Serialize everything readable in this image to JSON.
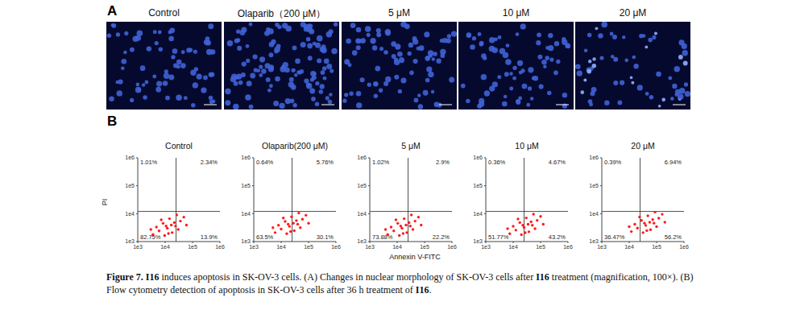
{
  "panel_a": {
    "label": "A",
    "titles": [
      "Control",
      "Olaparib（200 μM）",
      "5 μM",
      "10 μM",
      "20 μM"
    ]
  },
  "panel_b_label": "B",
  "shared_axes": {
    "x_label": "Annexin V-FITC",
    "y_label": "PI"
  },
  "chart_data": [
    {
      "type": "scatter",
      "title": "Control",
      "log": true,
      "color": "#ff1a1a",
      "xlim": [
        1000,
        1000000
      ],
      "ylim": [
        1000,
        1000000
      ],
      "xticks": [
        {
          "value": 1000,
          "label": "1e3"
        },
        {
          "value": 10000,
          "label": "1e4"
        },
        {
          "value": 100000,
          "label": "1e5"
        },
        {
          "value": 1000000,
          "label": "1e6"
        }
      ],
      "yticks": [
        {
          "value": 1000,
          "label": "1e3"
        },
        {
          "value": 10000,
          "label": "1e4"
        },
        {
          "value": 100000,
          "label": "1e5"
        },
        {
          "value": 1000000,
          "label": "1e6"
        }
      ],
      "gates": {
        "x": 25000,
        "y": 12000
      },
      "quadrants": [
        {
          "position": "upper_left",
          "value": 1.01,
          "label": "1.01%"
        },
        {
          "position": "upper_right",
          "value": 2.34,
          "label": "2.34%"
        },
        {
          "position": "lower_left",
          "value": 82.75,
          "label": "82.75%"
        },
        {
          "position": "lower_right",
          "value": 13.9,
          "label": "13.9%"
        }
      ],
      "x": [
        12000,
        6000,
        24000,
        8400,
        18000,
        3600,
        36000,
        14400,
        9600,
        30000,
        4800,
        21600,
        48000,
        7200,
        13200,
        60000,
        3000,
        26400,
        16800,
        10800
      ],
      "y": [
        3000,
        2400,
        3600,
        4500,
        2100,
        1800,
        5400,
        6600,
        1650,
        2700,
        3300,
        4800,
        7500,
        6000,
        1950,
        3900,
        2700,
        9000,
        3900,
        3600
      ]
    },
    {
      "type": "scatter",
      "title": "Olaparib(200 μM)",
      "log": true,
      "color": "#ff1a1a",
      "xlim": [
        1000,
        1000000
      ],
      "ylim": [
        1000,
        1000000
      ],
      "xticks": [
        {
          "value": 1000,
          "label": "1e3"
        },
        {
          "value": 10000,
          "label": "1e4"
        },
        {
          "value": 100000,
          "label": "1e5"
        },
        {
          "value": 1000000,
          "label": "1e6"
        }
      ],
      "yticks": [
        {
          "value": 1000,
          "label": "1e3"
        },
        {
          "value": 10000,
          "label": "1e4"
        },
        {
          "value": 100000,
          "label": "1e5"
        },
        {
          "value": 1000000,
          "label": "1e6"
        }
      ],
      "gates": {
        "x": 25000,
        "y": 12000
      },
      "quadrants": [
        {
          "position": "upper_left",
          "value": 0.64,
          "label": "0.64%"
        },
        {
          "position": "upper_right",
          "value": 5.76,
          "label": "5.76%"
        },
        {
          "position": "lower_left",
          "value": 63.5,
          "label": "63.5%"
        },
        {
          "position": "lower_right",
          "value": 30.1,
          "label": "30.1%"
        }
      ],
      "x": [
        20000,
        10000,
        40000,
        14000,
        30000,
        6000,
        60000,
        24000,
        16000,
        50000,
        8000,
        36000,
        80000,
        12000,
        22000,
        100000,
        5000,
        44000,
        28000,
        18000
      ],
      "y": [
        3500,
        2800,
        4200,
        5250,
        2450,
        2100,
        6300,
        7700,
        1925,
        3150,
        3850,
        5600,
        8750,
        7000,
        2275,
        4550,
        3150,
        10500,
        4550,
        4200
      ]
    },
    {
      "type": "scatter",
      "title": "5 μM",
      "log": true,
      "color": "#ff1a1a",
      "xlim": [
        1000,
        1000000
      ],
      "ylim": [
        1000,
        1000000
      ],
      "xticks": [
        {
          "value": 1000,
          "label": "1e3"
        },
        {
          "value": 10000,
          "label": "1e4"
        },
        {
          "value": 100000,
          "label": "1e5"
        },
        {
          "value": 1000000,
          "label": "1e6"
        }
      ],
      "yticks": [
        {
          "value": 1000,
          "label": "1e3"
        },
        {
          "value": 10000,
          "label": "1e4"
        },
        {
          "value": 100000,
          "label": "1e5"
        },
        {
          "value": 1000000,
          "label": "1e6"
        }
      ],
      "gates": {
        "x": 25000,
        "y": 12000
      },
      "quadrants": [
        {
          "position": "upper_left",
          "value": 1.02,
          "label": "1.02%"
        },
        {
          "position": "upper_right",
          "value": 2.9,
          "label": "2.9%"
        },
        {
          "position": "lower_left",
          "value": 73.88,
          "label": "73.88%"
        },
        {
          "position": "lower_right",
          "value": 22.2,
          "label": "22.2%"
        }
      ],
      "x": [
        15000,
        7500,
        30000,
        10500,
        22500,
        4500,
        45000,
        18000,
        12000,
        37500,
        6000,
        27000,
        60000,
        9000,
        16500,
        75000,
        3750,
        33000,
        21000,
        13500
      ],
      "y": [
        3000,
        2400,
        3600,
        4500,
        2100,
        1800,
        5400,
        6600,
        1650,
        2700,
        3300,
        4800,
        7500,
        6000,
        1950,
        3900,
        2700,
        9000,
        3900,
        3600
      ]
    },
    {
      "type": "scatter",
      "title": "10 μM",
      "log": true,
      "color": "#ff1a1a",
      "xlim": [
        1000,
        1000000
      ],
      "ylim": [
        1000,
        1000000
      ],
      "xticks": [
        {
          "value": 1000,
          "label": "1e3"
        },
        {
          "value": 10000,
          "label": "1e4"
        },
        {
          "value": 100000,
          "label": "1e5"
        },
        {
          "value": 1000000,
          "label": "1e6"
        }
      ],
      "yticks": [
        {
          "value": 1000,
          "label": "1e3"
        },
        {
          "value": 10000,
          "label": "1e4"
        },
        {
          "value": 100000,
          "label": "1e5"
        },
        {
          "value": 1000000,
          "label": "1e6"
        }
      ],
      "gates": {
        "x": 25000,
        "y": 12000
      },
      "quadrants": [
        {
          "position": "upper_left",
          "value": 0.36,
          "label": "0.36%"
        },
        {
          "position": "upper_right",
          "value": 4.67,
          "label": "4.67%"
        },
        {
          "position": "lower_left",
          "value": 51.77,
          "label": "51.77%"
        },
        {
          "position": "lower_right",
          "value": 43.2,
          "label": "43.2%"
        }
      ],
      "x": [
        25000,
        12500,
        50000,
        17500,
        37500,
        7500,
        75000,
        30000,
        20000,
        62500,
        10000,
        45000,
        100000,
        15000,
        27500,
        125000,
        6250,
        55000,
        35000,
        22500
      ],
      "y": [
        3200,
        2560,
        3840,
        4800,
        2240,
        1920,
        5760,
        7040,
        1760,
        2880,
        3520,
        5120,
        8000,
        6400,
        2080,
        4160,
        2880,
        9600,
        4160,
        3840
      ]
    },
    {
      "type": "scatter",
      "title": "20 μM",
      "log": true,
      "color": "#ff1a1a",
      "xlim": [
        1000,
        1000000
      ],
      "ylim": [
        1000,
        1000000
      ],
      "xticks": [
        {
          "value": 1000,
          "label": "1e3"
        },
        {
          "value": 10000,
          "label": "1e4"
        },
        {
          "value": 100000,
          "label": "1e5"
        },
        {
          "value": 1000000,
          "label": "1e6"
        }
      ],
      "yticks": [
        {
          "value": 1000,
          "label": "1e3"
        },
        {
          "value": 10000,
          "label": "1e4"
        },
        {
          "value": 100000,
          "label": "1e5"
        },
        {
          "value": 1000000,
          "label": "1e6"
        }
      ],
      "gates": {
        "x": 25000,
        "y": 12000
      },
      "quadrants": [
        {
          "position": "upper_left",
          "value": 0.39,
          "label": "0.39%"
        },
        {
          "position": "upper_right",
          "value": 6.94,
          "label": "6.94%"
        },
        {
          "position": "lower_left",
          "value": 36.47,
          "label": "36.47%"
        },
        {
          "position": "lower_right",
          "value": 56.2,
          "label": "56.2%"
        }
      ],
      "x": [
        40000,
        20000,
        80000,
        28000,
        60000,
        12000,
        120000,
        48000,
        32000,
        100000,
        16000,
        72000,
        160000,
        24000,
        44000,
        200000,
        10000,
        88000,
        56000,
        36000
      ],
      "y": [
        3800,
        3040,
        4560,
        5700,
        2660,
        2280,
        6840,
        8360,
        2090,
        3420,
        4180,
        6080,
        9500,
        7600,
        2470,
        4940,
        3420,
        11400,
        4940,
        4560
      ]
    }
  ],
  "caption": [
    {
      "text": "Figure 7. ",
      "bold": true
    },
    {
      "text": "I16",
      "bold": true
    },
    {
      "text": " induces apoptosis in SK-OV-3 cells. (A) Changes in nuclear morphology of SK-OV-3 cells after "
    },
    {
      "text": "I16",
      "bold": true
    },
    {
      "text": " treatment (magnification, 100×). (B) Flow cytometry detection of apoptosis in SK-OV-3 cells after 36 h treatment of "
    },
    {
      "text": "I16",
      "bold": true
    },
    {
      "text": "."
    }
  ]
}
